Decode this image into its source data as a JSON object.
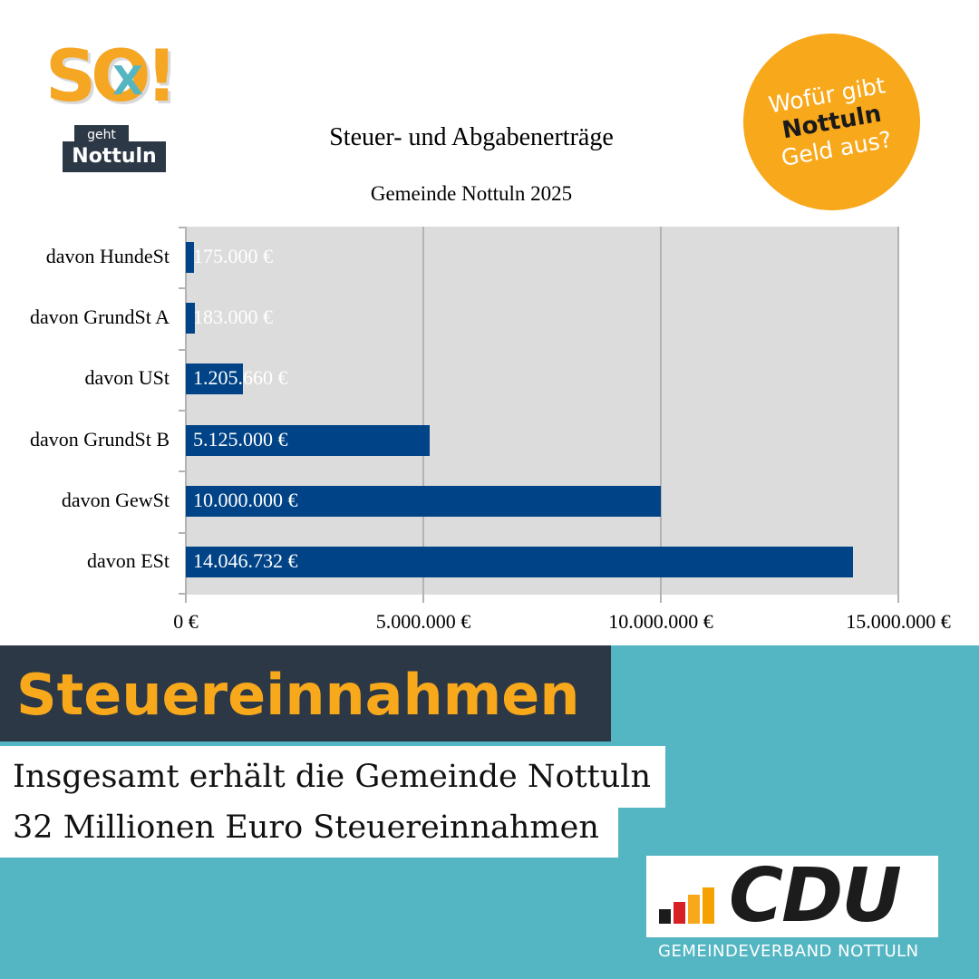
{
  "logo": {
    "so": "SO!",
    "x": "X",
    "geht": "geht",
    "town": "Nottuln"
  },
  "badge": {
    "line1": "Wofür gibt",
    "line2": "Nottuln",
    "line3": "Geld aus?"
  },
  "chart_data": {
    "type": "bar",
    "orientation": "horizontal",
    "title": "Steuer- und Abgabenerträge",
    "subtitle": "Gemeinde Nottuln 2025",
    "categories": [
      "davon HundeSt",
      "davon GrundSt A",
      "davon USt",
      "davon GrundSt B",
      "davon GewSt",
      "davon ESt"
    ],
    "values": [
      175000,
      183000,
      1205660,
      5125000,
      10000000,
      14046732
    ],
    "value_labels": [
      "175.000 €",
      "183.000 €",
      "1.205.660 €",
      "5.125.000 €",
      "10.000.000 €",
      "14.046.732 €"
    ],
    "xlim": [
      0,
      15000000
    ],
    "x_ticks": [
      "0 €",
      "5.000.000 €",
      "10.000.000 €",
      "15.000.000 €"
    ],
    "x_tick_values": [
      0,
      5000000,
      10000000,
      15000000
    ],
    "grid": true,
    "colors": {
      "bar": "#004386",
      "plot_bg": "#dcdcdc",
      "grid": "#b3b3b3"
    }
  },
  "heading": "Steuereinnahmen",
  "summary": {
    "line1": "Insgesamt erhält die Gemeinde Nottuln",
    "line2": "32 Millionen Euro Steuereinnahmen"
  },
  "footer": {
    "party": "CDU",
    "sub": "GEMEINDEVERBAND NOTTULN"
  },
  "colors": {
    "accent": "#f8a81b",
    "teal": "#54b6c2",
    "dark": "#2d3846"
  }
}
